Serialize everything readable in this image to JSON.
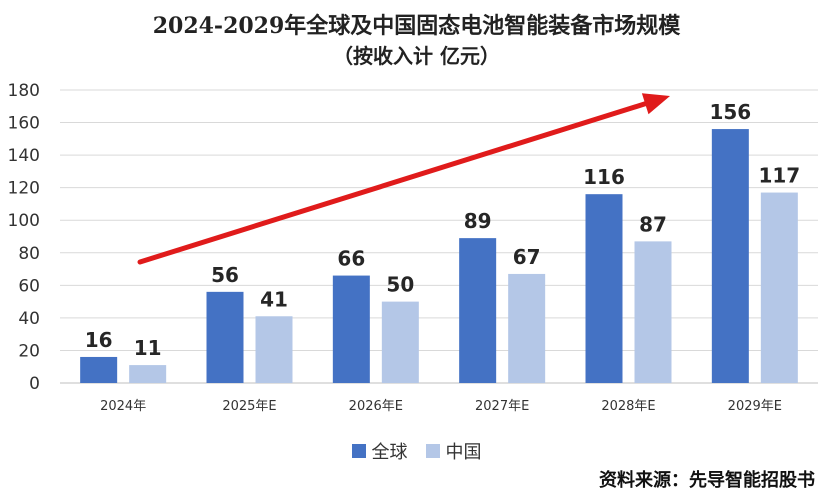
{
  "chart_data": {
    "type": "bar",
    "title": "2024-2029年全球及中国固态电池智能装备市场规模",
    "subtitle": "（按收入计 亿元）",
    "categories": [
      "2024年",
      "2025年E",
      "2026年E",
      "2027年E",
      "2028年E",
      "2029年E"
    ],
    "series": [
      {
        "name": "全球",
        "values": [
          16,
          56,
          66,
          89,
          116,
          156
        ],
        "color": "#4472C4"
      },
      {
        "name": "中国",
        "values": [
          11,
          41,
          50,
          67,
          87,
          117
        ],
        "color": "#B4C7E7"
      }
    ],
    "ylim": [
      0,
      180
    ],
    "yticks": [
      0,
      20,
      40,
      60,
      80,
      100,
      120,
      140,
      160,
      180
    ],
    "grid": true,
    "legend_position": "bottom",
    "trend_arrow_color": "#E01B1B"
  },
  "source_text": "资料来源：先导智能招股书"
}
